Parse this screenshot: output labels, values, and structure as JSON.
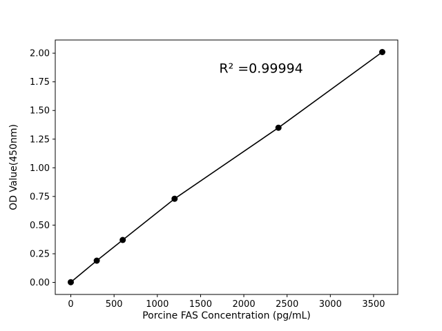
{
  "chart_data": {
    "type": "scatter",
    "title": "",
    "xlabel": "Porcine FAS Concentration (pg/mL)",
    "ylabel": "OD Value(450nm)",
    "points": [
      {
        "x": 0,
        "y": 0.002
      },
      {
        "x": 300,
        "y": 0.19
      },
      {
        "x": 600,
        "y": 0.37
      },
      {
        "x": 1200,
        "y": 0.73
      },
      {
        "x": 2400,
        "y": 1.35
      },
      {
        "x": 3600,
        "y": 2.01
      }
    ],
    "fit_line": true,
    "xlim": [
      -180,
      3780
    ],
    "ylim": [
      -0.105,
      2.115
    ],
    "xticks": [
      0,
      500,
      1000,
      1500,
      2000,
      2500,
      3000,
      3500
    ],
    "xtick_labels": [
      "0",
      "500",
      "1000",
      "1500",
      "2000",
      "2500",
      "3000",
      "3500"
    ],
    "ytick_values": [
      0.0,
      0.25,
      0.5,
      0.75,
      1.0,
      1.25,
      1.5,
      1.75,
      2.0
    ],
    "ytick_labels": [
      "0.00",
      "0.25",
      "0.50",
      "0.75",
      "1.00",
      "1.25",
      "1.50",
      "1.75",
      "2.00"
    ],
    "annotation": {
      "text": "R² =0.99994",
      "x": 2200,
      "y": 1.83
    },
    "grid": false,
    "legend": "none",
    "line_color": "#000000",
    "marker_color": "#000000",
    "axis_color": "#000000",
    "background_color": "#ffffff"
  }
}
